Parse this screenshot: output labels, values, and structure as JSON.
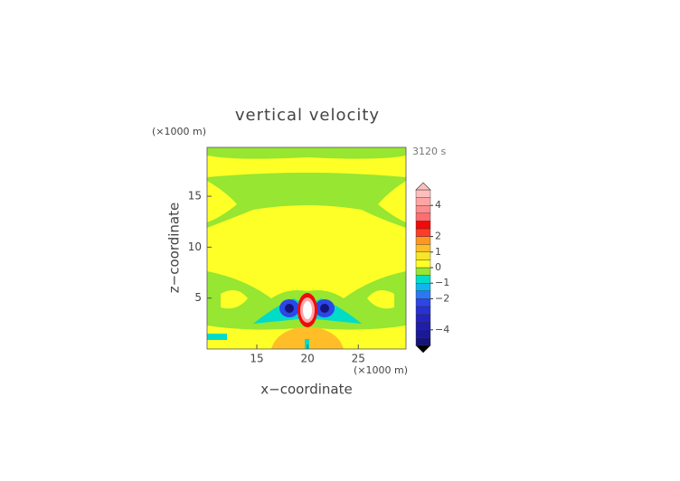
{
  "chart_data": {
    "type": "contour",
    "title": "vertical velocity",
    "x_label": "x−coordinate",
    "y_label": "z−coordinate",
    "x_unit": "(×1000 m)",
    "y_unit": "(×1000 m)",
    "time_label": "3120 s",
    "xlim": [
      10.1,
      29.7
    ],
    "xticks": [
      15,
      20,
      25
    ],
    "ylim": [
      0,
      19.8
    ],
    "yticks": [
      5,
      10,
      15
    ],
    "colorbar": {
      "levels": [
        -5,
        -4.5,
        -4,
        -3.5,
        -3,
        -2.5,
        -2,
        -1.5,
        -1,
        -0.5,
        0,
        0.5,
        1,
        1.5,
        2,
        2.5,
        3,
        3.5,
        4,
        4.5,
        5
      ],
      "colors": [
        "#14147a",
        "#1a1a96",
        "#1e1eaa",
        "#2323be",
        "#2832d2",
        "#2d46e6",
        "#2a78f5",
        "#10b4f0",
        "#00dcc8",
        "#96e632",
        "#ffff28",
        "#f5e628",
        "#ffbe28",
        "#ff9620",
        "#ff3c28",
        "#f00a0a",
        "#ff6e6e",
        "#ff8c8c",
        "#ffa5a5",
        "#ffbebe"
      ],
      "ticks": [
        {
          "value": -4,
          "label": "−4"
        },
        {
          "value": -2,
          "label": "−2"
        },
        {
          "value": -1,
          "label": "−1"
        },
        0,
        1,
        2,
        4
      ]
    }
  }
}
